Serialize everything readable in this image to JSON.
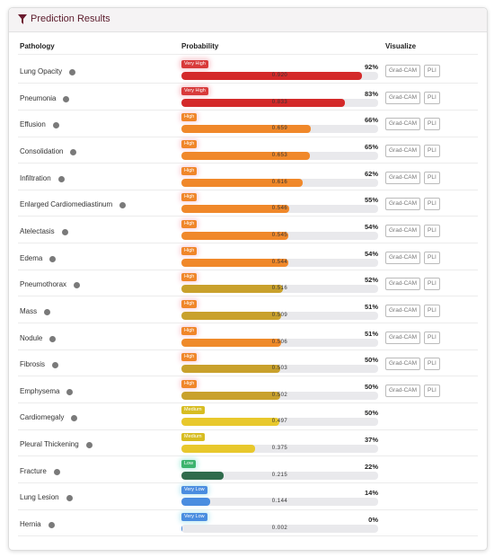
{
  "header": {
    "title": "Prediction Results"
  },
  "table": {
    "columns": [
      "Pathology",
      "Probability",
      "Visualize"
    ],
    "rows": [
      {
        "pathology": "Lung Opacity",
        "level": "Very High",
        "percent": "92%",
        "score": "0.920",
        "color": "#d42a2a",
        "actions": [
          "Grad-CAM",
          "PLI"
        ]
      },
      {
        "pathology": "Pneumonia",
        "level": "Very High",
        "percent": "83%",
        "score": "0.833",
        "color": "#d42a2a",
        "actions": [
          "Grad-CAM",
          "PLI"
        ]
      },
      {
        "pathology": "Effusion",
        "level": "High",
        "percent": "66%",
        "score": "0.659",
        "color": "#f0882a",
        "actions": [
          "Grad-CAM",
          "PLI"
        ]
      },
      {
        "pathology": "Consolidation",
        "level": "High",
        "percent": "65%",
        "score": "0.653",
        "color": "#f0882a",
        "actions": [
          "Grad-CAM",
          "PLI"
        ]
      },
      {
        "pathology": "Infiltration",
        "level": "High",
        "percent": "62%",
        "score": "0.616",
        "color": "#f0882a",
        "actions": [
          "Grad-CAM",
          "PLI"
        ]
      },
      {
        "pathology": "Enlarged Cardiomediastinum",
        "level": "High",
        "percent": "55%",
        "score": "0.546",
        "color": "#f0882a",
        "actions": [
          "Grad-CAM",
          "PLI"
        ]
      },
      {
        "pathology": "Atelectasis",
        "level": "High",
        "percent": "54%",
        "score": "0.545",
        "color": "#f0882a",
        "actions": [
          "Grad-CAM",
          "PLI"
        ]
      },
      {
        "pathology": "Edema",
        "level": "High",
        "percent": "54%",
        "score": "0.544",
        "color": "#f0882a",
        "actions": [
          "Grad-CAM",
          "PLI"
        ]
      },
      {
        "pathology": "Pneumothorax",
        "level": "High",
        "percent": "52%",
        "score": "0.516",
        "color": "#c9a12c",
        "actions": [
          "Grad-CAM",
          "PLI"
        ]
      },
      {
        "pathology": "Mass",
        "level": "High",
        "percent": "51%",
        "score": "0.509",
        "color": "#c9a12c",
        "actions": [
          "Grad-CAM",
          "PLI"
        ]
      },
      {
        "pathology": "Nodule",
        "level": "High",
        "percent": "51%",
        "score": "0.506",
        "color": "#ef8a2a",
        "actions": [
          "Grad-CAM",
          "PLI"
        ]
      },
      {
        "pathology": "Fibrosis",
        "level": "High",
        "percent": "50%",
        "score": "0.503",
        "color": "#c9a12c",
        "actions": [
          "Grad-CAM",
          "PLI"
        ]
      },
      {
        "pathology": "Emphysema",
        "level": "High",
        "percent": "50%",
        "score": "0.502",
        "color": "#c9a12c",
        "actions": [
          "Grad-CAM",
          "PLI"
        ]
      },
      {
        "pathology": "Cardiomegaly",
        "level": "Medium",
        "percent": "50%",
        "score": "0.497",
        "color": "#e8c82c"
      },
      {
        "pathology": "Pleural Thickening",
        "level": "Medium",
        "percent": "37%",
        "score": "0.375",
        "color": "#e8c82c"
      },
      {
        "pathology": "Fracture",
        "level": "Low",
        "percent": "22%",
        "score": "0.215",
        "color": "#2f6b4c"
      },
      {
        "pathology": "Lung Lesion",
        "level": "Very Low",
        "percent": "14%",
        "score": "0.144",
        "color": "#4a8de0"
      },
      {
        "pathology": "Hernia",
        "level": "Very Low",
        "percent": "0%",
        "score": "0.002",
        "color": "#4a8de0"
      }
    ]
  }
}
